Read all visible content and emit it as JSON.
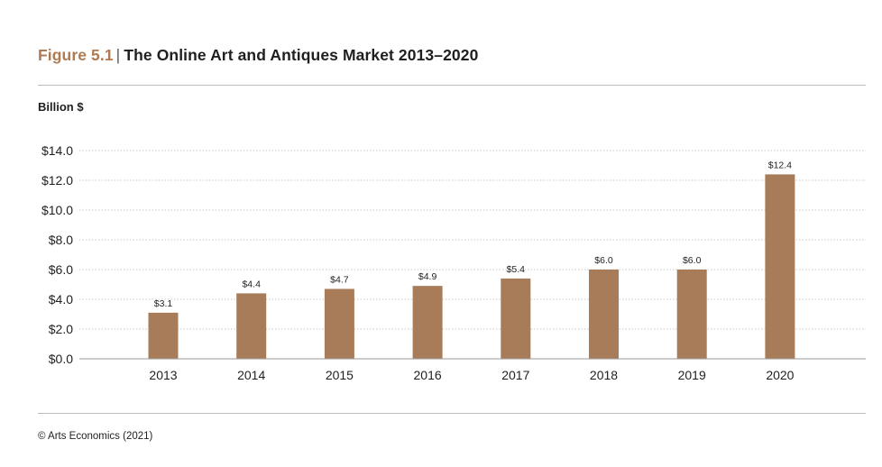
{
  "header": {
    "figure_number": "Figure 5.1",
    "separator": "|",
    "title": "The Online Art and Antiques Market 2013–2020"
  },
  "unit_label": "Billion $",
  "source": "© Arts Economics (2021)",
  "colors": {
    "bar": "#a87c58",
    "figure_number": "#b07a52",
    "gridline": "#c8c8c8",
    "axis": "#9a9a9a"
  },
  "chart_data": {
    "type": "bar",
    "title": "The Online Art and Antiques Market 2013–2020",
    "ylabel": "Billion $",
    "xlabel": "",
    "categories": [
      "2013",
      "2014",
      "2015",
      "2016",
      "2017",
      "2018",
      "2019",
      "2020"
    ],
    "values": [
      3.1,
      4.4,
      4.7,
      4.9,
      5.4,
      6.0,
      6.0,
      12.4
    ],
    "data_labels": [
      "$3.1",
      "$4.4",
      "$4.7",
      "$4.9",
      "$5.4",
      "$6.0",
      "$6.0",
      "$12.4"
    ],
    "ylim": [
      0,
      14
    ],
    "y_ticks": [
      0,
      2,
      4,
      6,
      8,
      10,
      12,
      14
    ],
    "y_tick_labels": [
      "$0.0",
      "$2.0",
      "$4.0",
      "$6.0",
      "$8.0",
      "$10.0",
      "$12.0",
      "$14.0"
    ],
    "grid": true,
    "legend": "none"
  }
}
